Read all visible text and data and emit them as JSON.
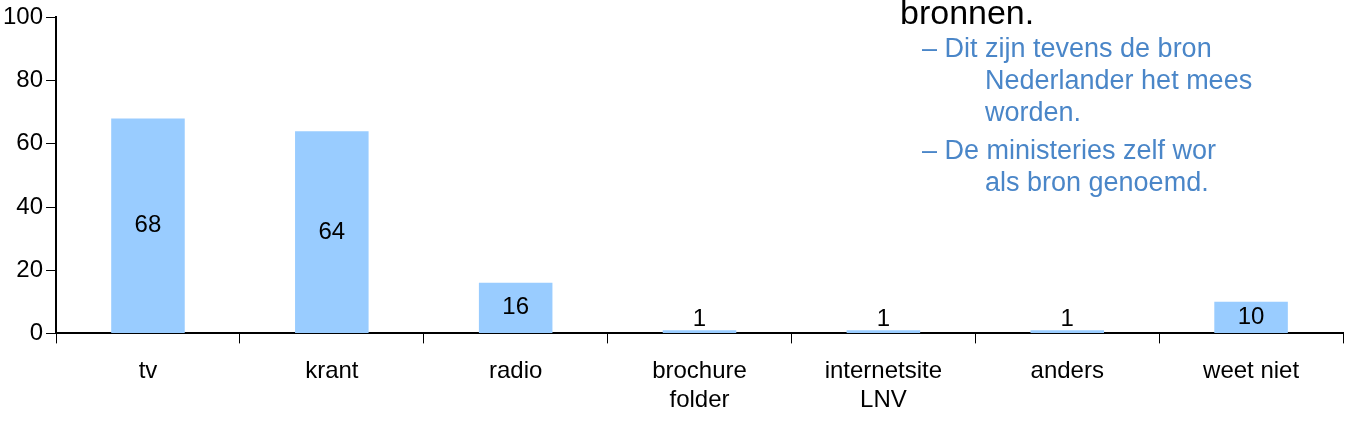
{
  "chart_data": {
    "type": "bar",
    "categories": [
      "tv",
      "krant",
      "radio",
      "brochure\nfolder",
      "internetsite\nLNV",
      "anders",
      "weet niet"
    ],
    "values": [
      68,
      64,
      16,
      1,
      1,
      1,
      10
    ],
    "color": "#99ccff",
    "ylim": [
      0,
      100
    ],
    "yticks": [
      0,
      20,
      40,
      60,
      80,
      100
    ],
    "grid": false,
    "legend": false,
    "data_labels": true,
    "annotations": [
      "bronnen.",
      "– Dit zijn tevens de bron\nNederlander het mees\nworden.",
      "– De ministeries zelf wor\nals bron genoemd."
    ]
  }
}
